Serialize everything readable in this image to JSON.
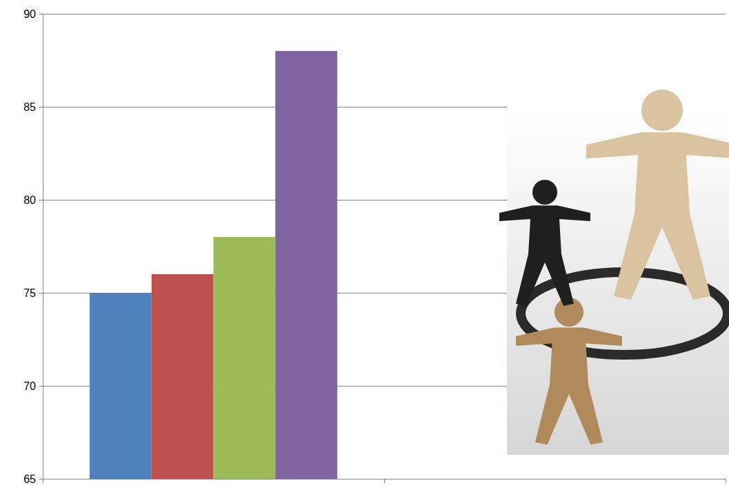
{
  "chart_data": {
    "type": "bar",
    "categories": [
      null,
      null
    ],
    "series": [
      {
        "color": "#4f81bd",
        "values": [
          75,
          null
        ]
      },
      {
        "color": "#c0504d",
        "values": [
          76,
          null
        ]
      },
      {
        "color": "#9bbb59",
        "values": [
          78,
          null
        ]
      },
      {
        "color": "#8064a2",
        "values": [
          88,
          null
        ]
      }
    ],
    "ylim": [
      65,
      90
    ],
    "yticks": [
      65,
      70,
      75,
      80,
      85,
      90
    ],
    "grid": true
  }
}
